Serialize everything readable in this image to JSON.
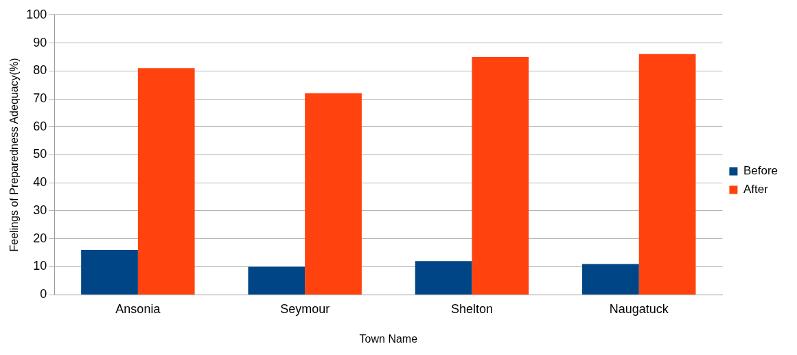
{
  "chart_data": {
    "type": "bar",
    "xlabel": "Town Name",
    "ylabel": "Feelings of Preparedness Adequacy(%)",
    "categories": [
      "Ansonia",
      "Seymour",
      "Shelton",
      "Naugatuck"
    ],
    "series": [
      {
        "name": "Before",
        "color": "#004586",
        "values": [
          16,
          10,
          12,
          11
        ]
      },
      {
        "name": "After",
        "color": "#ff420e",
        "values": [
          81,
          72,
          85,
          86
        ]
      }
    ],
    "ylim": [
      0,
      100
    ],
    "yticks": [
      0,
      10,
      20,
      30,
      40,
      50,
      60,
      70,
      80,
      90,
      100
    ],
    "grid": "y",
    "legend": "right"
  }
}
